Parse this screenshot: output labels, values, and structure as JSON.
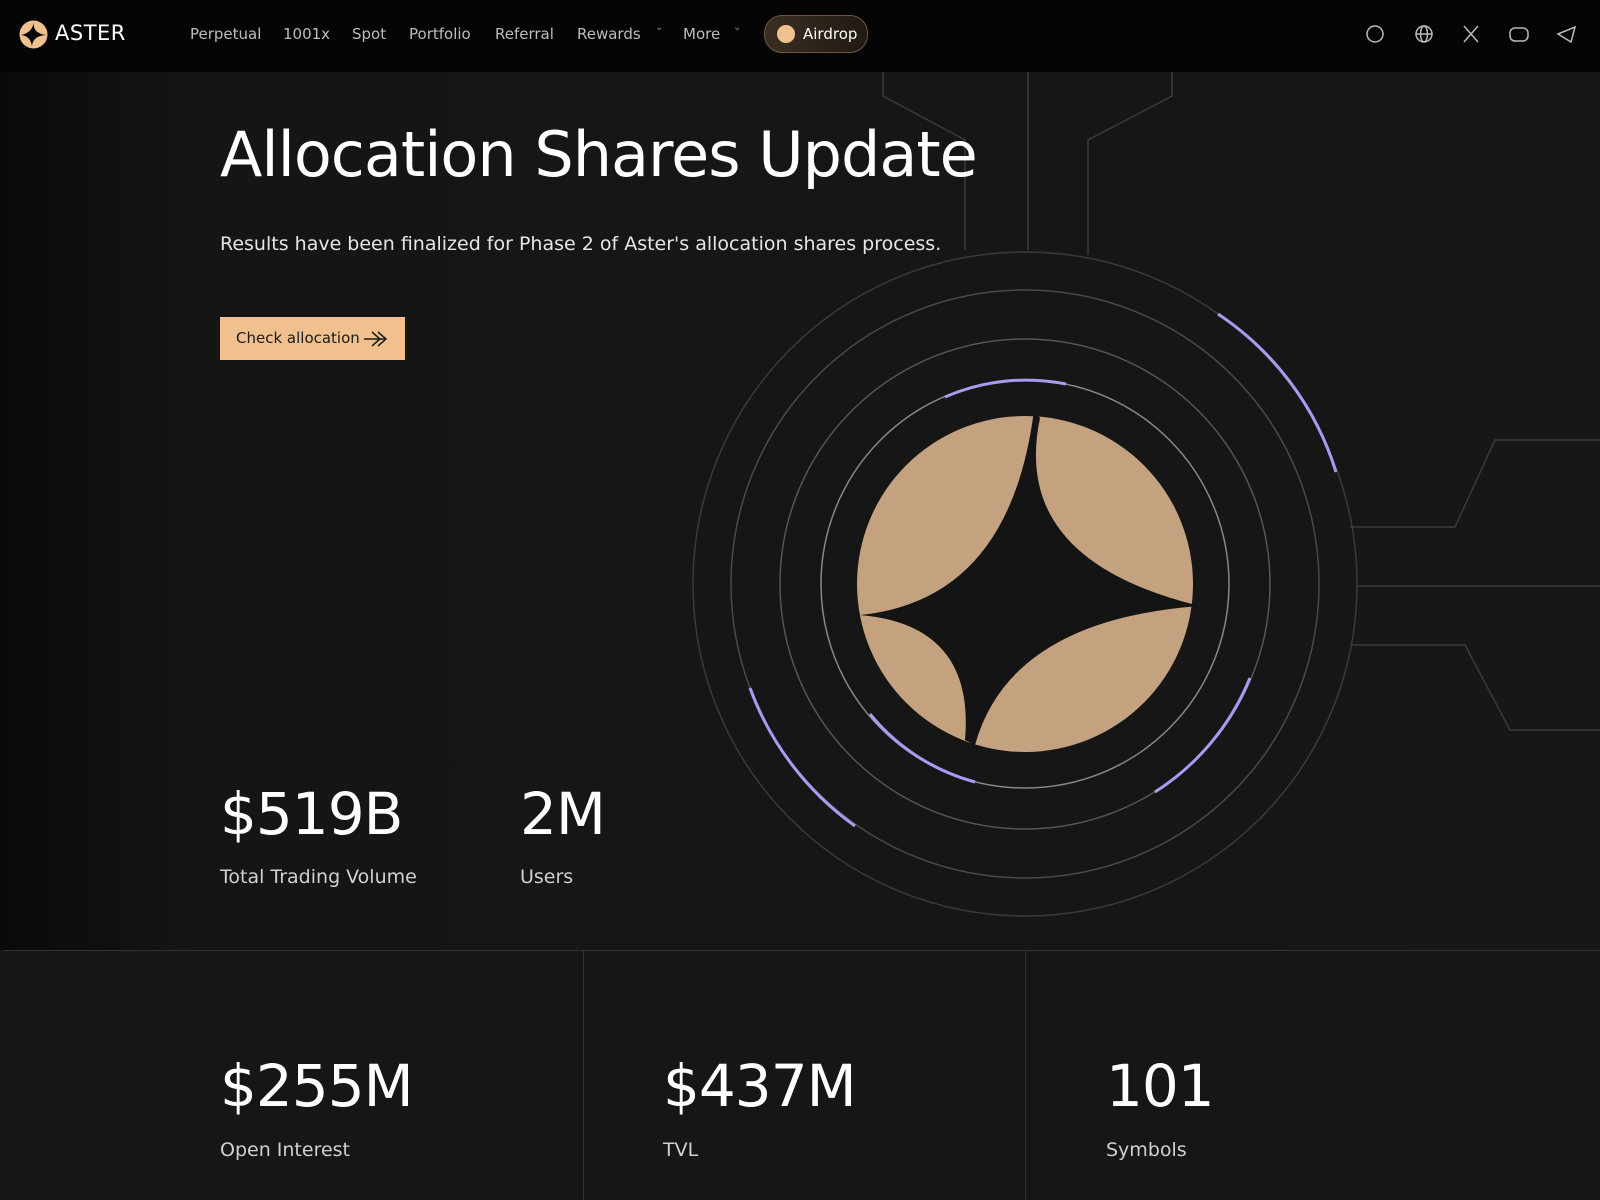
{
  "header": {
    "brand": "ASTER",
    "nav": [
      "Perpetual",
      "1001x",
      "Spot",
      "Portfolio",
      "Referral",
      "Rewards",
      "More"
    ],
    "airdrop": "Airdrop"
  },
  "hero": {
    "title": "Allocation Shares Update",
    "subtitle": "Results have been finalized for Phase 2 of Aster's allocation shares process.",
    "button": "Check allocation"
  },
  "stats": [
    {
      "value": "$519B",
      "label": "Total Trading Volume"
    },
    {
      "value": "2M",
      "label": "Users"
    }
  ],
  "metrics": [
    {
      "value": "$255M",
      "label": "Open Interest"
    },
    {
      "value": "$437M",
      "label": "TVL"
    },
    {
      "value": "101",
      "label": "Symbols"
    }
  ]
}
